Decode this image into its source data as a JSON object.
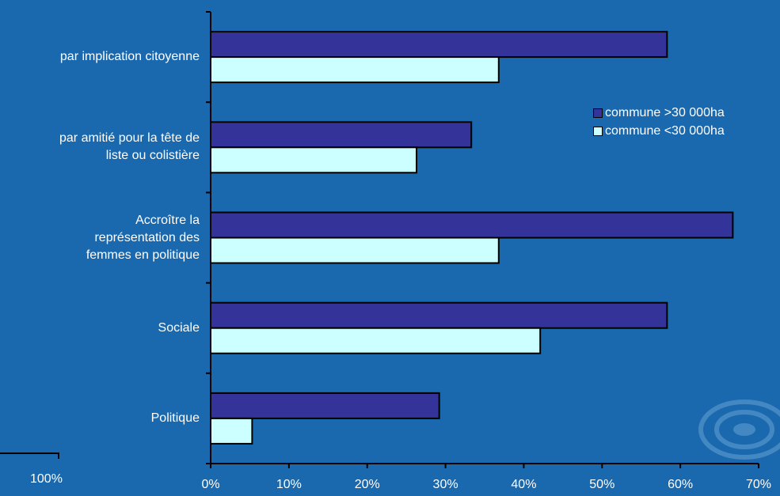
{
  "chart_data": {
    "type": "bar",
    "orientation": "horizontal",
    "categories": [
      "par implication citoyenne",
      "par amitié pour la tête de liste ou colistière",
      "Accroître la représentation des femmes en politique",
      "Sociale",
      "Politique"
    ],
    "category_lines": [
      [
        "par implication citoyenne"
      ],
      [
        "par amitié pour la tête de",
        "liste ou colistière"
      ],
      [
        "Accroître la",
        "représentation des",
        "femmes en politique"
      ],
      [
        "Sociale"
      ],
      [
        "Politique"
      ]
    ],
    "series": [
      {
        "name": "commune >30 000ha",
        "color": "#333399",
        "values": [
          0.583,
          0.333,
          0.667,
          0.583,
          0.292
        ]
      },
      {
        "name": "commune <30 000ha",
        "color": "#ccffff",
        "values": [
          0.368,
          0.263,
          0.368,
          0.421,
          0.053
        ]
      }
    ],
    "xlim": [
      0,
      0.7
    ],
    "xticks": [
      "0%",
      "10%",
      "20%",
      "30%",
      "40%",
      "50%",
      "60%",
      "70%"
    ],
    "legend": "right",
    "grid": false,
    "extra_text": "100%"
  },
  "colors": {
    "background": "#1a68ad",
    "axis": "#000000"
  }
}
